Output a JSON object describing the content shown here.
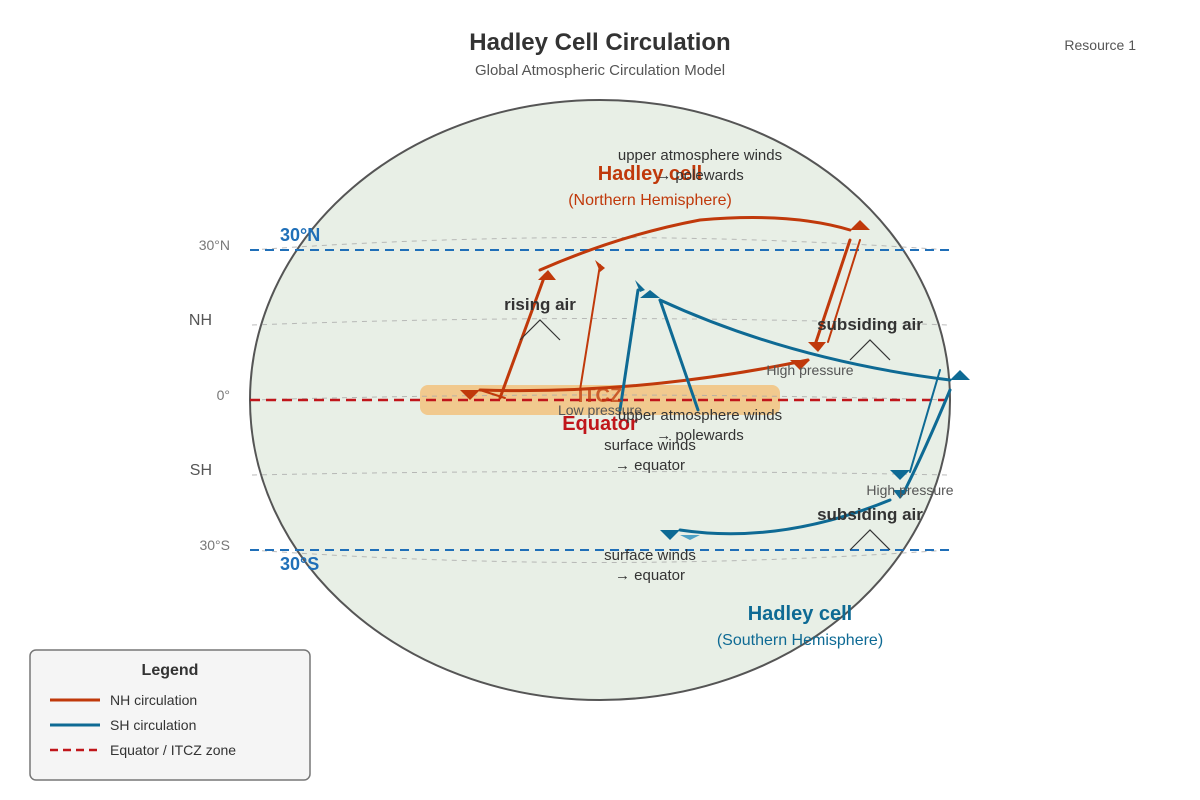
{
  "header": {
    "title": "Hadley Cell Circulation",
    "subtitle": "Global Atmospheric Circulation Model",
    "resource": "Resource 1"
  },
  "latitudes": {
    "n30": "30°N",
    "nh": "NH",
    "zero": "0°",
    "sh": "SH",
    "s30": "30°S",
    "n30_blue": "30°N",
    "s30_blue": "30°S"
  },
  "nh_cell": {
    "title": "Hadley cell",
    "subtitle": "(Northern Hemisphere)",
    "upper_winds_line1": "upper atmosphere winds",
    "upper_winds_line2": "→ polewards",
    "rising": "rising air",
    "subsiding": "subsiding air",
    "high_pressure": "High pressure",
    "surface_line1": "surface winds",
    "surface_line2": "→ equator"
  },
  "equator": {
    "itcz": "ITCZ",
    "low_pressure": "Low pressure",
    "label": "Equator"
  },
  "sh_cell": {
    "title": "Hadley cell",
    "subtitle": "(Southern Hemisphere)",
    "upper_winds_line1": "upper atmosphere winds",
    "upper_winds_line2": "→ polewards",
    "subsiding": "subsiding air",
    "high_pressure": "High pressure",
    "surface_line1": "surface winds",
    "surface_line2": "→ equator"
  },
  "legend": {
    "title": "Legend",
    "items": [
      "NH circulation",
      "SH circulation",
      "Equator / ITCZ zone"
    ]
  },
  "colors": {
    "nh": "#c0390b",
    "sh": "#0e6a94",
    "equator": "#c0161b",
    "latitude_blue": "#1f6fb8",
    "globe_fill": "#e8efe6",
    "itcz_band": "#f2c27e"
  }
}
